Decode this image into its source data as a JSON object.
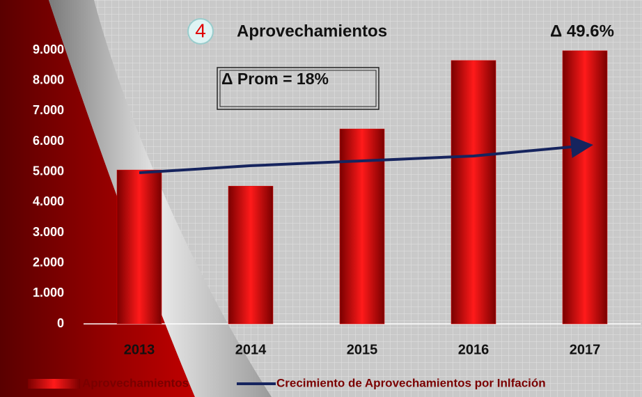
{
  "chart_data": {
    "type": "bar",
    "badge": "4",
    "title": "Aprovechamientos",
    "annotations": [
      "Δ 49.6%",
      "Δ Prom = 18%"
    ],
    "categories": [
      "2013",
      "2014",
      "2015",
      "2016",
      "2017"
    ],
    "series": [
      {
        "name": "Aprovechamientos",
        "type": "bar",
        "color": "#e00000",
        "values": [
          5060,
          4530,
          6410,
          8660,
          8980
        ]
      },
      {
        "name": "Crecimiento de Aprovechamientos por Inlfación",
        "type": "line",
        "color": "#16245e",
        "values": [
          4970,
          5200,
          5360,
          5520,
          5860
        ]
      }
    ],
    "ylim": [
      0,
      9000
    ],
    "yticks": [
      0,
      {
        "value": 1000,
        "label": "1.000"
      },
      {
        "value": 2000,
        "label": "2.000"
      },
      {
        "value": 3000,
        "label": "3.000"
      },
      {
        "value": 4000,
        "label": "4.000"
      },
      {
        "value": 5000,
        "label": "5.000"
      },
      {
        "value": 6000,
        "label": "6.000"
      },
      {
        "value": 7000,
        "label": "7.000"
      },
      {
        "value": 8000,
        "label": "8.000"
      },
      {
        "value": 9000,
        "label": "9.000"
      }
    ],
    "grid": false
  }
}
